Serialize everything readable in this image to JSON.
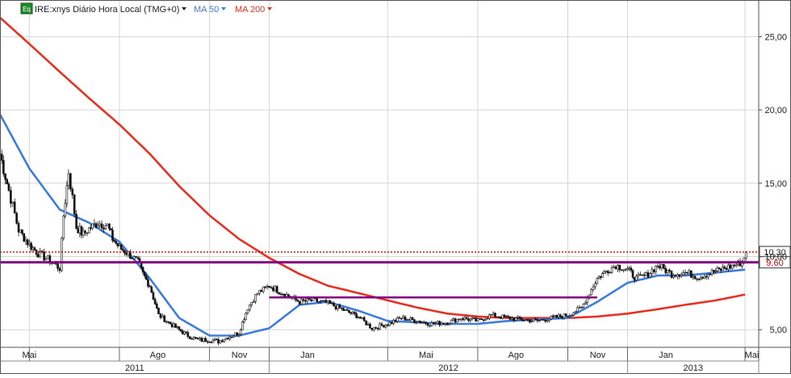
{
  "colors": {
    "ma50": "#3f7ddb",
    "ma200": "#e53224",
    "price": "#111111",
    "support": "#800080",
    "resistance": "#cc0000",
    "grid": "#d6d6d6",
    "badge": "#1e8c2e"
  },
  "legend": {
    "badge": "Eq",
    "symbol_text": "IRE:xnys Diário Hora Local (TMG+0)",
    "ma50_label": "MA 50",
    "ma200_label": "MA 200",
    "dropdown_icon": "caret-down-icon"
  },
  "chart_data": {
    "type": "line",
    "title": "",
    "xlabel": "",
    "ylabel": "",
    "ylim": [
      3.8,
      27.5
    ],
    "y_ticks": [
      5,
      10,
      15,
      20,
      25
    ],
    "y_tick_labels": [
      "5,00",
      "10,00",
      "15,00",
      "20,00",
      "25,00"
    ],
    "x_range": [
      "2011-04-01",
      "2013-05-15"
    ],
    "month_ticks": [
      {
        "label": "Mai",
        "date": "2011-05-01"
      },
      {
        "label": "Ago",
        "date": "2011-08-01"
      },
      {
        "label": "Nov",
        "date": "2011-11-01"
      },
      {
        "label": "Jan",
        "date": "2012-01-01"
      },
      {
        "label": "Mai",
        "date": "2012-05-01"
      },
      {
        "label": "Ago",
        "date": "2012-08-01"
      },
      {
        "label": "Nov",
        "date": "2012-11-01"
      },
      {
        "label": "Jan",
        "date": "2013-01-01"
      },
      {
        "label": "Mai",
        "date": "2013-05-01"
      }
    ],
    "year_ticks": [
      {
        "label": "2011",
        "start": "2011-04-01",
        "end": "2012-01-01"
      },
      {
        "label": "2012",
        "start": "2012-01-01",
        "end": "2013-01-01"
      },
      {
        "label": "2013",
        "start": "2013-01-01",
        "end": "2013-05-15"
      }
    ],
    "grid": true,
    "legend_position": "top-left",
    "series": [
      {
        "name": "IRE:xnys",
        "style": "candlestick",
        "x": [
          "2011-04-01",
          "2011-04-10",
          "2011-04-20",
          "2011-05-01",
          "2011-05-10",
          "2011-05-20",
          "2011-06-01",
          "2011-06-05",
          "2011-06-10",
          "2011-06-14",
          "2011-06-18",
          "2011-06-25",
          "2011-07-01",
          "2011-07-10",
          "2011-07-20",
          "2011-07-25",
          "2011-08-01",
          "2011-08-10",
          "2011-08-20",
          "2011-08-25",
          "2011-09-01",
          "2011-09-10",
          "2011-09-20",
          "2011-10-01",
          "2011-10-10",
          "2011-10-20",
          "2011-11-01",
          "2011-11-10",
          "2011-11-20",
          "2011-12-01",
          "2011-12-10",
          "2011-12-20",
          "2012-01-01",
          "2012-01-15",
          "2012-02-01",
          "2012-02-15",
          "2012-03-01",
          "2012-03-15",
          "2012-04-01",
          "2012-04-15",
          "2012-05-01",
          "2012-05-15",
          "2012-06-01",
          "2012-06-15",
          "2012-07-01",
          "2012-07-15",
          "2012-08-01",
          "2012-08-15",
          "2012-09-01",
          "2012-09-15",
          "2012-10-01",
          "2012-10-15",
          "2012-11-01",
          "2012-11-15",
          "2012-12-01",
          "2012-12-10",
          "2012-12-20",
          "2013-01-01",
          "2013-01-10",
          "2013-01-20",
          "2013-02-01",
          "2013-02-15",
          "2013-03-01",
          "2013-03-15",
          "2013-04-01",
          "2013-04-10",
          "2013-04-20",
          "2013-04-28",
          "2013-05-02"
        ],
        "values": [
          17.0,
          14.5,
          11.8,
          10.8,
          10.2,
          9.8,
          9.2,
          12.8,
          15.8,
          14.0,
          12.0,
          11.5,
          11.9,
          12.3,
          12.1,
          11.2,
          10.6,
          10.2,
          9.6,
          8.8,
          8.0,
          6.0,
          5.5,
          5.0,
          4.6,
          4.3,
          4.3,
          4.2,
          4.5,
          4.8,
          6.5,
          7.5,
          8.0,
          7.5,
          6.9,
          7.0,
          6.8,
          6.4,
          5.9,
          5.1,
          5.4,
          5.8,
          5.6,
          5.4,
          5.5,
          5.8,
          5.6,
          6.0,
          5.8,
          5.7,
          5.6,
          5.8,
          6.0,
          6.5,
          8.5,
          9.0,
          9.4,
          9.1,
          8.5,
          8.7,
          9.4,
          8.8,
          8.9,
          8.6,
          9.0,
          9.2,
          9.4,
          9.6,
          10.3
        ]
      },
      {
        "name": "MA 50",
        "x": [
          "2011-04-01",
          "2011-05-01",
          "2011-06-01",
          "2011-07-01",
          "2011-08-01",
          "2011-09-01",
          "2011-10-01",
          "2011-11-01",
          "2011-12-01",
          "2012-01-01",
          "2012-02-01",
          "2012-03-01",
          "2012-04-01",
          "2012-05-01",
          "2012-06-01",
          "2012-07-01",
          "2012-08-01",
          "2012-09-01",
          "2012-10-01",
          "2012-11-01",
          "2012-12-01",
          "2013-01-01",
          "2013-02-01",
          "2013-03-01",
          "2013-04-01",
          "2013-05-01"
        ],
        "values": [
          19.7,
          16.0,
          13.2,
          12.3,
          11.0,
          8.5,
          5.8,
          4.6,
          4.6,
          5.1,
          6.7,
          6.9,
          6.3,
          5.6,
          5.5,
          5.4,
          5.4,
          5.6,
          5.7,
          5.8,
          6.9,
          8.2,
          8.7,
          8.7,
          8.9,
          9.1
        ]
      },
      {
        "name": "MA 200",
        "x": [
          "2011-04-01",
          "2011-05-01",
          "2011-06-01",
          "2011-07-01",
          "2011-08-01",
          "2011-09-01",
          "2011-10-01",
          "2011-11-01",
          "2011-12-01",
          "2012-01-01",
          "2012-02-01",
          "2012-03-01",
          "2012-04-01",
          "2012-05-01",
          "2012-06-01",
          "2012-07-01",
          "2012-08-01",
          "2012-09-01",
          "2012-10-01",
          "2012-11-01",
          "2012-12-01",
          "2013-01-01",
          "2013-02-01",
          "2013-03-01",
          "2013-04-01",
          "2013-05-01"
        ],
        "values": [
          26.3,
          24.5,
          22.6,
          20.8,
          19.0,
          17.0,
          14.8,
          12.8,
          11.2,
          9.9,
          8.8,
          8.0,
          7.5,
          7.0,
          6.5,
          6.1,
          5.9,
          5.8,
          5.8,
          5.8,
          5.9,
          6.1,
          6.4,
          6.7,
          7.0,
          7.4
        ]
      }
    ],
    "annotations": [
      {
        "name": "price-level-line",
        "y": 10.3,
        "label": "10,30",
        "style": "dotted",
        "color": "#cc0000"
      },
      {
        "name": "support-line",
        "y": 9.6,
        "label": "9,60",
        "style": "solid",
        "color": "#800080"
      },
      {
        "name": "range-line",
        "y": 7.2,
        "x_start": "2012-01-01",
        "x_end": "2012-12-01",
        "style": "solid",
        "color": "#800080"
      }
    ]
  }
}
